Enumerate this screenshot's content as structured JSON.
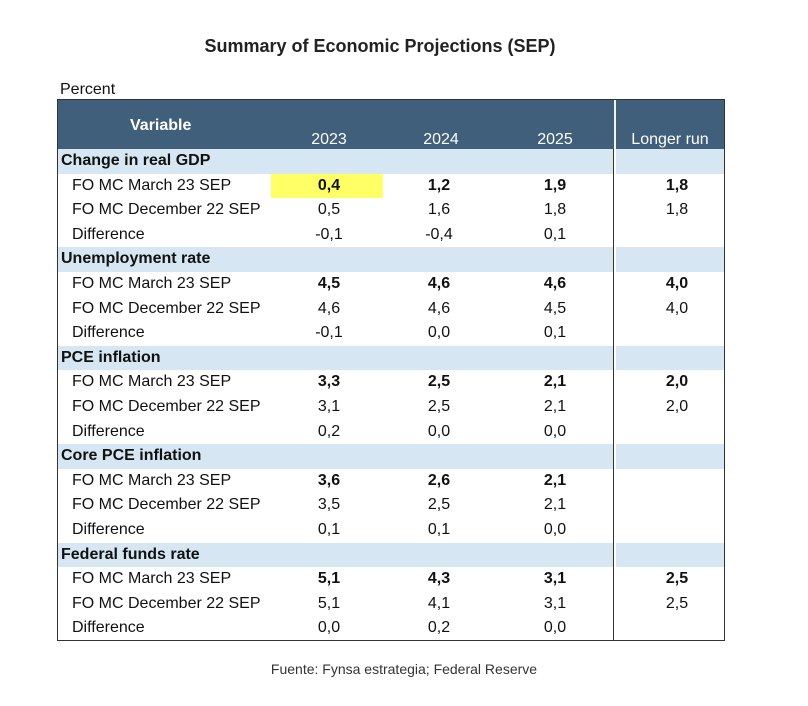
{
  "title": "Summary of Economic Projections (SEP)",
  "unit_label": "Percent",
  "source": "Fuente: Fynsa estrategia; Federal Reserve",
  "colors": {
    "header_bg": "#3f5f7a",
    "section_bg": "#d6e6f2",
    "highlight": "#ffff66"
  },
  "chart_data": {
    "type": "table",
    "columns": [
      "Variable",
      "2023",
      "2024",
      "2025",
      "Longer run"
    ],
    "sections": [
      {
        "name": "Change in real GDP",
        "rows": [
          {
            "label": "FO MC March 23 SEP",
            "values": [
              "0,4",
              "1,2",
              "1,9",
              "1,8"
            ],
            "bold": true
          },
          {
            "label": "FO MC December 22 SEP",
            "values": [
              "0,5",
              "1,6",
              "1,8",
              "1,8"
            ],
            "bold": false
          },
          {
            "label": "Difference",
            "values": [
              "-0,1",
              "-0,4",
              "0,1",
              ""
            ],
            "bold": false
          }
        ]
      },
      {
        "name": "Unemployment rate",
        "rows": [
          {
            "label": "FO MC March 23 SEP",
            "values": [
              "4,5",
              "4,6",
              "4,6",
              "4,0"
            ],
            "bold": true
          },
          {
            "label": "FO MC December 22 SEP",
            "values": [
              "4,6",
              "4,6",
              "4,5",
              "4,0"
            ],
            "bold": false
          },
          {
            "label": "Difference",
            "values": [
              "-0,1",
              "0,0",
              "0,1",
              ""
            ],
            "bold": false
          }
        ]
      },
      {
        "name": "PCE inflation",
        "rows": [
          {
            "label": "FO MC March 23 SEP",
            "values": [
              "3,3",
              "2,5",
              "2,1",
              "2,0"
            ],
            "bold": true
          },
          {
            "label": "FO MC December 22 SEP",
            "values": [
              "3,1",
              "2,5",
              "2,1",
              "2,0"
            ],
            "bold": false
          },
          {
            "label": "Difference",
            "values": [
              "0,2",
              "0,0",
              "0,0",
              ""
            ],
            "bold": false
          }
        ]
      },
      {
        "name": "Core PCE inflation",
        "rows": [
          {
            "label": "FO MC March 23 SEP",
            "values": [
              "3,6",
              "2,6",
              "2,1",
              ""
            ],
            "bold": true
          },
          {
            "label": "FO MC December 22 SEP",
            "values": [
              "3,5",
              "2,5",
              "2,1",
              ""
            ],
            "bold": false
          },
          {
            "label": "Difference",
            "values": [
              "0,1",
              "0,1",
              "0,0",
              ""
            ],
            "bold": false
          }
        ]
      },
      {
        "name": "Federal funds rate",
        "rows": [
          {
            "label": "FO MC March 23 SEP",
            "values": [
              "5,1",
              "4,3",
              "3,1",
              "2,5"
            ],
            "bold": true
          },
          {
            "label": "FO MC December 22 SEP",
            "values": [
              "5,1",
              "4,1",
              "3,1",
              "2,5"
            ],
            "bold": false
          },
          {
            "label": "Difference",
            "values": [
              "0,0",
              "0,2",
              "0,0",
              ""
            ],
            "bold": false
          }
        ]
      }
    ]
  }
}
